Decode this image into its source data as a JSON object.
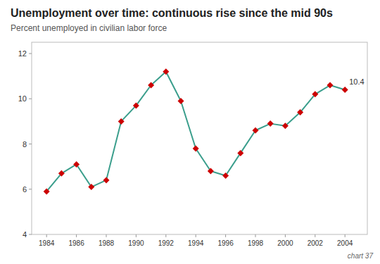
{
  "chart_data": {
    "type": "line",
    "title": "Unemployment over time: continuous rise since the mid 90s",
    "subtitle": "Percent unemployed in civilian labor force",
    "x": [
      1984,
      1985,
      1986,
      1987,
      1988,
      1989,
      1990,
      1991,
      1992,
      1993,
      1994,
      1995,
      1996,
      1997,
      1998,
      1999,
      2000,
      2001,
      2002,
      2003,
      2004
    ],
    "values": [
      5.9,
      6.7,
      7.1,
      6.1,
      6.4,
      9.0,
      9.7,
      10.6,
      11.2,
      9.9,
      7.8,
      6.8,
      6.6,
      7.6,
      8.6,
      8.9,
      8.8,
      9.4,
      10.2,
      10.6,
      10.4
    ],
    "color": "#3a9e8c",
    "colors": [
      "#cc0000",
      "#cc0000",
      "#cc0000",
      "#cc0000",
      "#cc0000",
      "#cc0000",
      "#cc0000",
      "#cc0000",
      "#cc0000",
      "#cc0000",
      "#cc0000",
      "#cc0000",
      "#cc0000",
      "#cc0000",
      "#cc0000",
      "#cc0000",
      "#cc0000",
      "#cc0000",
      "#cc0000",
      "#cc0000",
      "#cc0000"
    ],
    "marker": "diamond",
    "xlim": [
      1983,
      2005.5
    ],
    "ylim": [
      4,
      12.5
    ],
    "xticks": [
      1984,
      1986,
      1988,
      1990,
      1992,
      1994,
      1996,
      1998,
      2000,
      2002,
      2004
    ],
    "yticks": [
      4,
      6,
      8,
      10,
      12
    ],
    "grid": false,
    "annotations": [
      {
        "text": "10.4",
        "x": 2004,
        "y": 10.4
      },
      {
        "text": "chart 37"
      }
    ]
  }
}
